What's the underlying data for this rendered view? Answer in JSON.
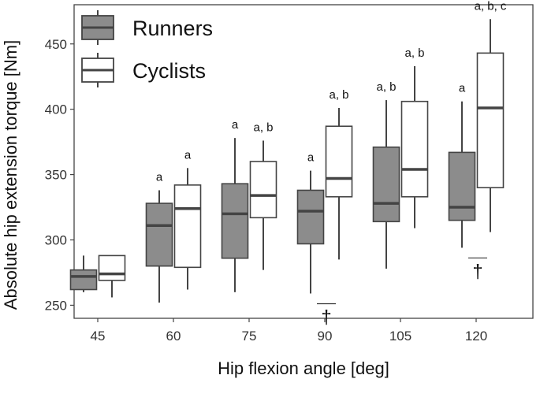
{
  "chart_data": {
    "type": "box",
    "xlabel": "Hip flexion angle [deg]",
    "ylabel": "Absolute hip extension torque [Nm]",
    "categories": [
      "45",
      "60",
      "75",
      "90",
      "105",
      "120"
    ],
    "y_ticks": [
      "250",
      "300",
      "350",
      "400",
      "450"
    ],
    "ylim": [
      240,
      480
    ],
    "grid": false,
    "legend_position": "top-left",
    "series": [
      {
        "name": "Runners",
        "fill": "#8c8c8c",
        "boxes": [
          {
            "min": 260,
            "q1": 262,
            "median": 272,
            "q3": 277,
            "max": 288
          },
          {
            "min": 252,
            "q1": 280,
            "median": 311,
            "q3": 328,
            "max": 338
          },
          {
            "min": 260,
            "q1": 286,
            "median": 320,
            "q3": 343,
            "max": 378
          },
          {
            "min": 259,
            "q1": 297,
            "median": 322,
            "q3": 338,
            "max": 353
          },
          {
            "min": 278,
            "q1": 314,
            "median": 328,
            "q3": 371,
            "max": 407
          },
          {
            "min": 294,
            "q1": 315,
            "median": 325,
            "q3": 367,
            "max": 406
          }
        ]
      },
      {
        "name": "Cyclists",
        "fill": "#ffffff",
        "boxes": [
          {
            "min": 256,
            "q1": 269,
            "median": 274,
            "q3": 288,
            "max": 288
          },
          {
            "min": 262,
            "q1": 279,
            "median": 324,
            "q3": 342,
            "max": 355
          },
          {
            "min": 277,
            "q1": 317,
            "median": 334,
            "q3": 360,
            "max": 376
          },
          {
            "min": 285,
            "q1": 333,
            "median": 347,
            "q3": 387,
            "max": 401
          },
          {
            "min": 309,
            "q1": 333,
            "median": 354,
            "q3": 406,
            "max": 433
          },
          {
            "min": 306,
            "q1": 340,
            "median": 401,
            "q3": 443,
            "max": 469
          }
        ]
      }
    ],
    "annotations": [
      {
        "category": "60",
        "series": "Runners",
        "text": "a"
      },
      {
        "category": "60",
        "series": "Cyclists",
        "text": "a"
      },
      {
        "category": "75",
        "series": "Runners",
        "text": "a"
      },
      {
        "category": "75",
        "series": "Cyclists",
        "text": "a, b"
      },
      {
        "category": "90",
        "series": "Runners",
        "text": "a"
      },
      {
        "category": "90",
        "series": "Cyclists",
        "text": "a, b"
      },
      {
        "category": "105",
        "series": "Runners",
        "text": "a, b"
      },
      {
        "category": "105",
        "series": "Cyclists",
        "text": "a, b"
      },
      {
        "category": "120",
        "series": "Runners",
        "text": "a"
      },
      {
        "category": "120",
        "series": "Cyclists",
        "text": "a, b, c"
      }
    ],
    "daggers": [
      {
        "category": "90",
        "text": "†"
      },
      {
        "category": "120",
        "text": "†"
      }
    ]
  }
}
